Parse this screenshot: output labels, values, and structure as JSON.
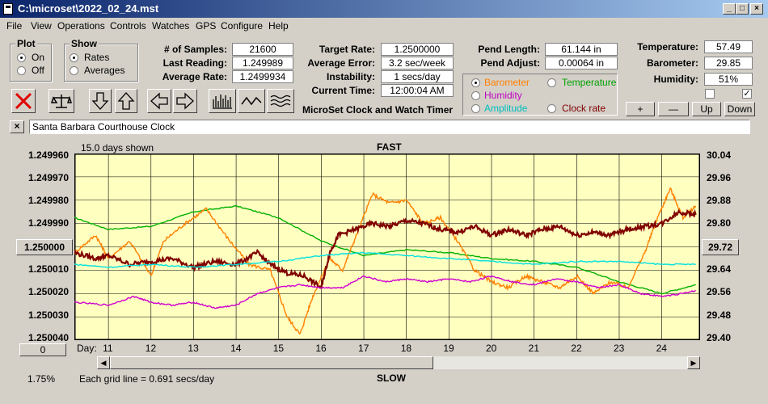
{
  "window": {
    "title": "C:\\microset\\2022_02_24.mst"
  },
  "menu": [
    "File",
    "View",
    "Operations",
    "Controls",
    "Watches",
    "GPS",
    "Configure",
    "Help"
  ],
  "plot_group": {
    "title": "Plot",
    "options": [
      "On",
      "Off"
    ],
    "selected": "On"
  },
  "show_group": {
    "title": "Show",
    "options": [
      "Rates",
      "Averages"
    ],
    "selected": "Rates"
  },
  "stats": {
    "samples_label": "# of Samples:",
    "samples": "21600",
    "last_label": "Last Reading:",
    "last": "1.249989",
    "avg_label": "Average Rate:",
    "avg": "1.2499934",
    "target_label": "Target Rate:",
    "target": "1.2500000",
    "avgerr_label": "Average Error:",
    "avgerr": "3.2 sec/week",
    "instab_label": "Instability:",
    "instab": "1 secs/day",
    "curtime_label": "Current Time:",
    "curtime": "12:00:04 AM",
    "app_caption": "MicroSet Clock and Watch Timer"
  },
  "pend": {
    "length_label": "Pend Length:",
    "length": "61.144 in",
    "adjust_label": "Pend Adjust:",
    "adjust": "0.00064 in"
  },
  "env": {
    "temp_label": "Temperature:",
    "temp": "57.49",
    "baro_label": "Barometer:",
    "baro": "29.85",
    "hum_label": "Humidity:",
    "hum": "51%"
  },
  "sensor_options": [
    {
      "label": "Barometer",
      "color": "#ff8000",
      "selected": true
    },
    {
      "label": "Temperature",
      "color": "#00a000",
      "selected": false
    },
    {
      "label": "Humidity",
      "color": "#c000c0",
      "selected": false
    },
    {
      "label": "Clock rate",
      "color": "#800000",
      "selected": false
    },
    {
      "label": "Amplitude",
      "color": "#00c0c0",
      "selected": false
    }
  ],
  "scale_buttons": [
    "+",
    "—",
    "Up",
    "Down"
  ],
  "checkboxes": [
    false,
    true
  ],
  "description": "Santa Barbara Courthouse Clock",
  "chart_top": {
    "days_shown": "15.0 days shown",
    "fast": "FAST"
  },
  "chart_bottom": {
    "slow": "SLOW",
    "grid_note": "Each grid line = 0.691 secs/day",
    "percent": "1.75%"
  },
  "left_button": "1.250000",
  "right_button": "29.72",
  "left_bottom_button": "0",
  "icons": [
    "delete-icon",
    "balance-scale-icon",
    "arrow-down-icon",
    "arrow-up-icon",
    "arrow-left-icon",
    "arrow-right-icon",
    "bar-chart-icon",
    "wave-icon",
    "multi-wave-icon"
  ],
  "chart_data": {
    "type": "line",
    "x_label": "Day:",
    "x_ticks": [
      "11",
      "12",
      "13",
      "14",
      "15",
      "16",
      "17",
      "18",
      "19",
      "20",
      "21",
      "22",
      "23",
      "24"
    ],
    "x_range": [
      10.2,
      24.9
    ],
    "left_axis": {
      "ticks": [
        "1.249960",
        "1.249970",
        "1.249980",
        "1.249990",
        "1.250000",
        "1.250010",
        "1.250020",
        "1.250030",
        "1.250040"
      ],
      "range": [
        1.24996,
        1.25004
      ],
      "inverted": true
    },
    "right_axis": {
      "ticks": [
        "30.04",
        "29.96",
        "29.88",
        "29.80",
        "29.72",
        "29.64",
        "29.56",
        "29.48",
        "29.40"
      ],
      "range": [
        29.4,
        30.04
      ]
    },
    "series": [
      {
        "name": "Temperature",
        "color": "#00b000",
        "x": [
          10.2,
          11,
          12,
          13,
          14,
          15,
          16,
          17,
          18,
          19,
          20,
          21,
          22,
          23,
          24,
          24.8
        ],
        "y": [
          29.82,
          29.78,
          29.79,
          29.84,
          29.86,
          29.82,
          29.74,
          29.69,
          29.71,
          29.7,
          29.68,
          29.67,
          29.65,
          29.6,
          29.56,
          29.59
        ]
      },
      {
        "name": "Barometer",
        "color": "#ff8000",
        "x": [
          10.2,
          10.7,
          11,
          11.5,
          12,
          12.3,
          12.8,
          13.3,
          13.8,
          14.3,
          14.8,
          15.2,
          15.5,
          15.8,
          16.2,
          16.5,
          16.8,
          17.2,
          17.6,
          18.0,
          18.4,
          18.8,
          19.2,
          19.6,
          20.0,
          20.4,
          20.8,
          21.2,
          21.6,
          22.0,
          22.4,
          22.8,
          23.2,
          23.6,
          23.9,
          24.2,
          24.5,
          24.8
        ],
        "y": [
          29.7,
          29.76,
          29.68,
          29.74,
          29.62,
          29.74,
          29.8,
          29.85,
          29.75,
          29.66,
          29.64,
          29.48,
          29.42,
          29.55,
          29.68,
          29.64,
          29.75,
          29.9,
          29.87,
          29.88,
          29.8,
          29.82,
          29.74,
          29.64,
          29.6,
          29.58,
          29.62,
          29.6,
          29.58,
          29.62,
          29.56,
          29.6,
          29.58,
          29.7,
          29.82,
          29.92,
          29.82,
          29.86
        ]
      },
      {
        "name": "Clock rate",
        "color": "#800000",
        "x": [
          10.2,
          10.7,
          11,
          11.5,
          12,
          12.5,
          13,
          13.5,
          14,
          14.5,
          14.8,
          15.2,
          15.6,
          16.0,
          16.2,
          16.4,
          16.8,
          17.2,
          17.6,
          18.0,
          18.4,
          18.8,
          19.2,
          19.6,
          20.0,
          20.4,
          20.8,
          21.2,
          21.6,
          22.0,
          22.4,
          22.8,
          23.2,
          23.6,
          24.0,
          24.4,
          24.8
        ],
        "y": [
          29.7,
          29.68,
          29.69,
          29.66,
          29.67,
          29.68,
          29.65,
          29.67,
          29.66,
          29.7,
          29.66,
          29.63,
          29.62,
          29.58,
          29.7,
          29.76,
          29.78,
          29.8,
          29.79,
          29.81,
          29.8,
          29.78,
          29.77,
          29.79,
          29.76,
          29.78,
          29.76,
          29.78,
          29.79,
          29.76,
          29.77,
          29.76,
          29.78,
          29.79,
          29.8,
          29.84,
          29.83
        ]
      },
      {
        "name": "Amplitude",
        "color": "#00e0e0",
        "x": [
          10.2,
          11,
          12,
          13,
          14,
          15,
          16,
          17,
          18,
          19,
          20,
          21,
          22,
          23,
          24,
          24.8
        ],
        "y": [
          29.66,
          29.65,
          29.66,
          29.65,
          29.66,
          29.67,
          29.69,
          29.7,
          29.69,
          29.68,
          29.67,
          29.66,
          29.67,
          29.67,
          29.66,
          29.66
        ]
      },
      {
        "name": "Humidity",
        "color": "#d000d0",
        "x": [
          10.2,
          11,
          11.6,
          12,
          12.5,
          13,
          13.5,
          14,
          14.5,
          15,
          15.5,
          16,
          16.5,
          17,
          17.5,
          18,
          18.5,
          19,
          19.5,
          20,
          20.5,
          21,
          21.5,
          22,
          22.5,
          23,
          23.5,
          24,
          24.5,
          24.8
        ],
        "y": [
          29.53,
          29.52,
          29.55,
          29.53,
          29.52,
          29.53,
          29.51,
          29.52,
          29.56,
          29.58,
          29.59,
          29.58,
          29.58,
          29.62,
          29.6,
          29.61,
          29.6,
          29.61,
          29.6,
          29.62,
          29.6,
          29.59,
          29.61,
          29.6,
          29.58,
          29.59,
          29.56,
          29.55,
          29.56,
          29.57
        ]
      }
    ]
  }
}
